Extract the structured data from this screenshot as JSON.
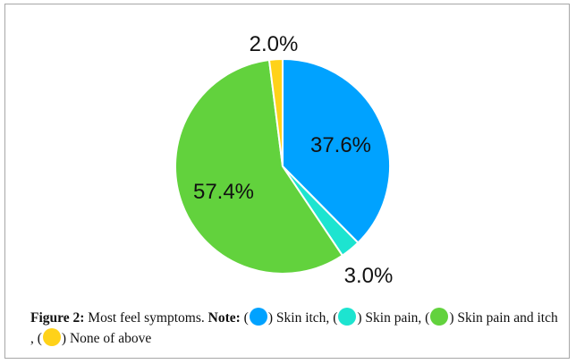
{
  "chart_data": {
    "type": "pie",
    "start_angle_deg": 0,
    "slices": [
      {
        "label": "Skin itch",
        "value": 37.6,
        "display": "37.6%",
        "color": "#00a2ff"
      },
      {
        "label": "Skin pain",
        "value": 3.0,
        "display": "3.0%",
        "color": "#1de4d0"
      },
      {
        "label": "Skin pain and itch",
        "value": 57.4,
        "display": "57.4%",
        "color": "#62d23d"
      },
      {
        "label": "None of above",
        "value": 2.0,
        "display": "2.0%",
        "color": "#ffd219"
      }
    ]
  },
  "caption": {
    "figure_label": "Figure 2:",
    "figure_text": "Most feel symptoms.",
    "note_label": "Note:",
    "legend": [
      {
        "text": "Skin itch,",
        "color": "#00a2ff"
      },
      {
        "text": "Skin pain,",
        "color": "#1de4d0"
      },
      {
        "text": "Skin pain and itch ,",
        "color": "#62d23d"
      },
      {
        "text": "None of above",
        "color": "#ffd219"
      }
    ]
  }
}
